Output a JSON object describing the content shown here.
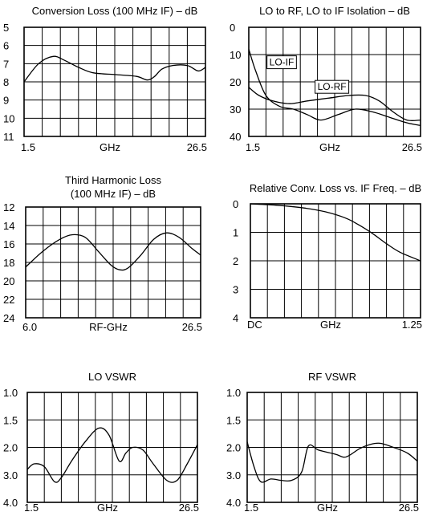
{
  "chart_data": [
    {
      "id": "conv_loss",
      "type": "line",
      "title": "Conversion Loss (100 MHz IF) – dB",
      "title_lines": [
        "Conversion Loss (100 MHz IF) – dB"
      ],
      "xlabel": "GHz",
      "x_ticks": [
        "1.5",
        "",
        "26.5"
      ],
      "xlim": [
        1.5,
        26.5
      ],
      "y_ticks": [
        "5",
        "6",
        "7",
        "8",
        "9",
        "10",
        "11"
      ],
      "ylim": [
        5,
        11
      ],
      "y_inverted": true,
      "grid": true,
      "series": [
        {
          "x": [
            1.5,
            3.5,
            5.5,
            7.0,
            9.0,
            11.0,
            14.0,
            17.0,
            18.5,
            19.5,
            20.5,
            22.0,
            24.0,
            25.5,
            26.5
          ],
          "values": [
            8.0,
            7.0,
            6.6,
            6.8,
            7.2,
            7.5,
            7.6,
            7.7,
            7.9,
            7.7,
            7.3,
            7.1,
            7.1,
            7.4,
            7.2
          ]
        }
      ]
    },
    {
      "id": "isolation",
      "type": "line",
      "title": "LO to RF, LO to IF Isolation – dB",
      "title_lines": [
        "LO to RF, LO to IF Isolation – dB"
      ],
      "xlabel": "GHz",
      "x_ticks": [
        "1.5",
        "",
        "26.5"
      ],
      "xlim": [
        1.5,
        26.5
      ],
      "y_ticks": [
        "0",
        "10",
        "20",
        "30",
        "40"
      ],
      "ylim": [
        0,
        40
      ],
      "y_inverted": true,
      "grid": true,
      "annotations": [
        {
          "text": "LO-IF",
          "x": 4.5,
          "y": 14
        },
        {
          "text": "LO-RF",
          "x": 11.5,
          "y": 23
        }
      ],
      "series": [
        {
          "name": "LO-IF",
          "x": [
            1.5,
            2.5,
            4.0,
            6.0,
            8.0,
            10.0,
            12.0,
            14.5,
            17.0,
            19.5,
            22.0,
            24.5,
            26.5
          ],
          "values": [
            8,
            16,
            25,
            29,
            30,
            32,
            34,
            32,
            30,
            31,
            33,
            35,
            36
          ]
        },
        {
          "name": "LO-RF",
          "x": [
            1.5,
            3.0,
            5.0,
            7.5,
            10.0,
            13.0,
            16.0,
            18.5,
            20.5,
            22.5,
            24.5,
            26.5
          ],
          "values": [
            22,
            25,
            27,
            28,
            27,
            26,
            25,
            25,
            27,
            31,
            34,
            34
          ]
        }
      ]
    },
    {
      "id": "third_harm",
      "type": "line",
      "title": "Third Harmonic Loss (100 MHz IF) – dB",
      "title_lines": [
        "Third Harmonic Loss",
        "(100 MHz IF) – dB"
      ],
      "xlabel": "RF-GHz",
      "x_ticks": [
        "6.0",
        "",
        "26.5"
      ],
      "xlim": [
        6.0,
        26.5
      ],
      "y_ticks": [
        "12",
        "14",
        "16",
        "18",
        "20",
        "22",
        "24"
      ],
      "ylim": [
        12,
        24
      ],
      "y_inverted": true,
      "grid": true,
      "series": [
        {
          "x": [
            6.0,
            8.0,
            10.0,
            11.5,
            13.0,
            14.5,
            16.0,
            17.0,
            18.0,
            19.5,
            21.0,
            22.5,
            24.0,
            25.5,
            26.5
          ],
          "values": [
            18.5,
            16.8,
            15.5,
            15.0,
            15.3,
            16.8,
            18.3,
            18.8,
            18.6,
            17.2,
            15.5,
            14.8,
            15.3,
            16.5,
            17.2
          ]
        }
      ]
    },
    {
      "id": "rel_conv",
      "type": "line",
      "title": "Relative Conv. Loss vs. IF Freq. – dB",
      "title_lines": [
        "Relative Conv. Loss vs. IF Freq. – dB"
      ],
      "xlabel": "GHz",
      "x_ticks": [
        "DC",
        "",
        "1.25"
      ],
      "xlim": [
        0,
        1.25
      ],
      "y_ticks": [
        "0",
        "1",
        "2",
        "3",
        "4"
      ],
      "ylim": [
        0,
        4
      ],
      "y_inverted": true,
      "grid": true,
      "series": [
        {
          "x": [
            0.0,
            0.2,
            0.4,
            0.55,
            0.7,
            0.8,
            0.9,
            1.0,
            1.1,
            1.25
          ],
          "values": [
            0.0,
            0.05,
            0.15,
            0.28,
            0.5,
            0.75,
            1.05,
            1.4,
            1.7,
            2.0
          ]
        }
      ]
    },
    {
      "id": "lo_vswr",
      "type": "line",
      "title": "LO VSWR",
      "title_lines": [
        "LO VSWR"
      ],
      "xlabel": "GHz",
      "x_ticks": [
        "1.5",
        "",
        "26.5"
      ],
      "xlim": [
        1.5,
        26.5
      ],
      "y_ticks": [
        "1.0",
        "1.5",
        "2.0",
        "3.0",
        "4.0"
      ],
      "y_scale": "categorical",
      "ylim": [
        0,
        4
      ],
      "y_inverted": true,
      "grid": true,
      "series": [
        {
          "x": [
            1.5,
            2.5,
            4.0,
            5.5,
            6.5,
            8.0,
            10.0,
            12.0,
            13.5,
            15.0,
            16.0,
            17.0,
            18.5,
            20.0,
            22.0,
            23.5,
            25.0,
            26.5
          ],
          "values": [
            2.8,
            2.6,
            2.7,
            3.25,
            3.1,
            2.5,
            1.8,
            1.3,
            1.55,
            2.5,
            2.2,
            2.0,
            2.1,
            2.6,
            3.2,
            3.2,
            2.6,
            1.9
          ]
        }
      ]
    },
    {
      "id": "rf_vswr",
      "type": "line",
      "title": "RF VSWR",
      "title_lines": [
        "RF VSWR"
      ],
      "xlabel": "GHz",
      "x_ticks": [
        "1.5",
        "",
        "26.5"
      ],
      "xlim": [
        1.5,
        26.5
      ],
      "y_ticks": [
        "1.0",
        "1.5",
        "2.0",
        "3.0",
        "4.0"
      ],
      "y_scale": "categorical",
      "ylim": [
        0,
        4
      ],
      "y_inverted": true,
      "grid": true,
      "series": [
        {
          "x": [
            1.5,
            2.5,
            3.5,
            5.0,
            6.5,
            8.0,
            9.5,
            10.5,
            12.0,
            14.5,
            16.0,
            18.0,
            19.5,
            21.0,
            23.0,
            25.0,
            26.5
          ],
          "values": [
            1.8,
            2.7,
            3.25,
            3.15,
            3.2,
            3.2,
            2.9,
            1.95,
            2.1,
            2.25,
            2.35,
            2.05,
            1.9,
            1.85,
            2.0,
            2.2,
            2.5
          ]
        }
      ]
    }
  ]
}
